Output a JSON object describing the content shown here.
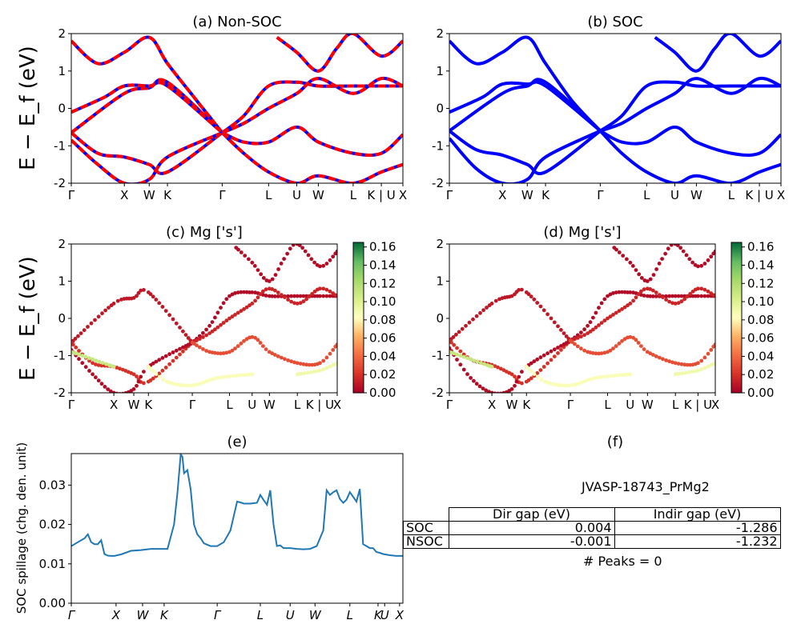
{
  "figure": {
    "ylabel_band": "E − E_f (eV)",
    "colorbar_ticks": [
      "0.00",
      "0.02",
      "0.04",
      "0.06",
      "0.08",
      "0.10",
      "0.12",
      "0.14",
      "0.16"
    ],
    "colorbar_range": [
      0,
      0.165
    ]
  },
  "panels": {
    "a": {
      "title": "(a) Non-SOC"
    },
    "b": {
      "title": "(b) SOC"
    },
    "c": {
      "title": "(c)  Mg ['s']"
    },
    "d": {
      "title": "(d) Mg ['s']"
    },
    "e": {
      "title": "(e)"
    },
    "f": {
      "title": "(f)"
    }
  },
  "kpath_labels": [
    "Γ",
    "X",
    "W",
    "K",
    "Γ",
    "L",
    "U",
    "W",
    "L",
    "K | U",
    "X"
  ],
  "kpath_positions": [
    0,
    0.16,
    0.235,
    0.29,
    0.455,
    0.595,
    0.68,
    0.745,
    0.85,
    0.935,
    1.0
  ],
  "spillage_labels": [
    "Γ",
    "X",
    "W",
    "K",
    "Γ",
    "L",
    "U",
    "W",
    "L",
    "K",
    "U",
    "X"
  ],
  "spillage_label_positions": [
    0,
    0.135,
    0.215,
    0.28,
    0.44,
    0.57,
    0.66,
    0.735,
    0.84,
    0.925,
    0.945,
    0.99
  ],
  "table": {
    "name": "JVASP-18743_PrMg2",
    "headers": [
      "Dir gap (eV)",
      "Indir gap (eV)"
    ],
    "rows": [
      {
        "label": "SOC",
        "dir": "0.004",
        "indir": "-1.286"
      },
      {
        "label": "NSOC",
        "dir": "-0.001",
        "indir": "-1.232"
      }
    ],
    "peaks": "# Peaks = 0"
  },
  "colors": {
    "nonsoc_up": "#ff0000",
    "nonsoc_dn": "#0000ff",
    "soc": "#0000ff",
    "spillage": "#1f77b4"
  },
  "chart_data": [
    {
      "type": "line",
      "panel": "a",
      "title": "(a) Non-SOC",
      "ylabel": "E − E_f (eV)",
      "ylim": [
        -2,
        2
      ],
      "yticks": [
        -2,
        -1,
        0,
        1,
        2
      ],
      "note_series": "band structure, spin up (red dashed) over spin down (blue)",
      "bands": [
        {
          "x": [
            0,
            0.16,
            0.235,
            0.29,
            0.455
          ],
          "y": [
            -0.65,
            0.4,
            0.55,
            0.7,
            -0.65
          ]
        },
        {
          "x": [
            0,
            0.08,
            0.16,
            0.235,
            0.29,
            0.455
          ],
          "y": [
            -0.65,
            -1.2,
            -1.3,
            -1.5,
            -1.7,
            -0.65
          ]
        },
        {
          "x": [
            0,
            0.08,
            0.16,
            0.235,
            0.29,
            0.455
          ],
          "y": [
            -0.85,
            -1.5,
            -2.0,
            -1.9,
            -1.3,
            -0.65
          ]
        },
        {
          "x": [
            0,
            0.08,
            0.16,
            0.235,
            0.29,
            0.37,
            0.455
          ],
          "y": [
            1.8,
            1.2,
            1.5,
            1.9,
            1.2,
            0.3,
            -0.65
          ]
        },
        {
          "x": [
            0,
            0.1,
            0.16,
            0.235,
            0.29,
            0.455
          ],
          "y": [
            -0.1,
            0.3,
            0.6,
            0.6,
            0.6,
            -0.65
          ]
        },
        {
          "x": [
            0.455,
            0.52,
            0.595,
            0.68,
            0.745,
            0.85,
            0.935,
            1.0
          ],
          "y": [
            -0.65,
            -0.2,
            0.6,
            0.7,
            0.6,
            0.6,
            0.6,
            0.6
          ]
        },
        {
          "x": [
            0.455,
            0.52,
            0.595,
            0.68,
            0.745,
            0.85,
            0.935,
            1.0
          ],
          "y": [
            -0.65,
            -1.2,
            -1.7,
            -2.0,
            -1.8,
            -2.0,
            -1.7,
            -1.5
          ]
        },
        {
          "x": [
            0.455,
            0.52,
            0.595,
            0.68,
            0.745,
            0.85,
            0.935,
            1.0
          ],
          "y": [
            -0.65,
            -0.4,
            0.0,
            0.4,
            0.8,
            0.4,
            0.8,
            0.6
          ]
        },
        {
          "x": [
            0.455,
            0.52,
            0.595,
            0.68,
            0.745,
            0.85,
            0.935,
            1.0
          ],
          "y": [
            -0.65,
            -0.9,
            -0.9,
            -0.5,
            -0.9,
            -1.2,
            -1.2,
            -0.7
          ]
        },
        {
          "x": [
            0.62,
            0.68,
            0.745,
            0.8,
            0.85,
            0.935,
            1.0
          ],
          "y": [
            1.9,
            1.5,
            1.0,
            1.6,
            2.0,
            1.4,
            1.8
          ]
        }
      ]
    },
    {
      "type": "line",
      "panel": "b",
      "title": "(b) SOC",
      "ylim": [
        -2,
        2
      ],
      "yticks": [
        -2,
        -1,
        0,
        1,
        2
      ],
      "bands": [
        {
          "x": [
            0,
            0.16,
            0.235,
            0.29,
            0.455
          ],
          "y": [
            -0.6,
            0.4,
            0.6,
            0.7,
            -0.6
          ]
        },
        {
          "x": [
            0,
            0.08,
            0.16,
            0.235,
            0.29,
            0.455
          ],
          "y": [
            -0.6,
            -1.1,
            -1.25,
            -1.5,
            -1.7,
            -0.6
          ]
        },
        {
          "x": [
            0,
            0.08,
            0.16,
            0.235,
            0.29,
            0.455
          ],
          "y": [
            -0.8,
            -1.6,
            -2.0,
            -1.9,
            -1.3,
            -0.6
          ]
        },
        {
          "x": [
            0,
            0.08,
            0.16,
            0.235,
            0.29,
            0.37,
            0.455
          ],
          "y": [
            1.8,
            1.2,
            1.5,
            1.9,
            1.2,
            0.2,
            -0.6
          ]
        },
        {
          "x": [
            0,
            0.1,
            0.16,
            0.235,
            0.29,
            0.455
          ],
          "y": [
            -0.1,
            0.3,
            0.65,
            0.65,
            0.6,
            -0.6
          ]
        },
        {
          "x": [
            0.455,
            0.52,
            0.595,
            0.68,
            0.745,
            0.85,
            0.935,
            1.0
          ],
          "y": [
            -0.6,
            -0.2,
            0.6,
            0.7,
            0.6,
            0.6,
            0.6,
            0.6
          ]
        },
        {
          "x": [
            0.455,
            0.52,
            0.595,
            0.68,
            0.745,
            0.85,
            0.935,
            1.0
          ],
          "y": [
            -0.6,
            -1.2,
            -1.7,
            -2.0,
            -1.8,
            -2.0,
            -1.7,
            -1.5
          ]
        },
        {
          "x": [
            0.455,
            0.52,
            0.595,
            0.68,
            0.745,
            0.85,
            0.935,
            1.0
          ],
          "y": [
            -0.6,
            -0.4,
            0.0,
            0.4,
            0.8,
            0.4,
            0.8,
            0.6
          ]
        },
        {
          "x": [
            0.455,
            0.52,
            0.595,
            0.68,
            0.745,
            0.85,
            0.935,
            1.0
          ],
          "y": [
            -0.6,
            -0.9,
            -0.9,
            -0.5,
            -0.9,
            -1.2,
            -1.2,
            -0.7
          ]
        },
        {
          "x": [
            0.62,
            0.68,
            0.745,
            0.8,
            0.85,
            0.935,
            1.0
          ],
          "y": [
            1.9,
            1.5,
            1.0,
            1.6,
            2.0,
            1.4,
            1.8
          ]
        }
      ]
    },
    {
      "type": "scatter",
      "panel": "c",
      "title": "(c)  Mg ['s']",
      "ylabel": "E − E_f (eV)",
      "ylim": [
        -2,
        2
      ],
      "colorbar_range": [
        0,
        0.165
      ],
      "bands": [
        {
          "x": [
            0,
            0.16,
            0.235,
            0.29,
            0.455
          ],
          "y": [
            -0.65,
            0.4,
            0.55,
            0.7,
            -0.65
          ],
          "w": 0.01
        },
        {
          "x": [
            0,
            0.08,
            0.16,
            0.235,
            0.29,
            0.455
          ],
          "y": [
            -0.65,
            -1.2,
            -1.3,
            -1.5,
            -1.7,
            -0.65
          ],
          "w": 0.02
        },
        {
          "x": [
            0,
            0.08,
            0.16,
            0.235,
            0.29,
            0.455
          ],
          "y": [
            -0.85,
            -1.5,
            -2.0,
            -1.9,
            -1.3,
            -0.65
          ],
          "w": 0.005
        },
        {
          "x": [
            0,
            0.08,
            0.16
          ],
          "y": [
            -0.9,
            -1.1,
            -1.3
          ],
          "w": 0.11
        },
        {
          "x": [
            0.29,
            0.36,
            0.455,
            0.55,
            0.68
          ],
          "y": [
            -1.3,
            -1.7,
            -1.8,
            -1.6,
            -1.5
          ],
          "w": 0.085
        },
        {
          "x": [
            0.85,
            0.935,
            1.0
          ],
          "y": [
            -1.5,
            -1.4,
            -1.2
          ],
          "w": 0.09
        },
        {
          "x": [
            0.455,
            0.52,
            0.595,
            0.68,
            0.745,
            0.85,
            0.935,
            1.0
          ],
          "y": [
            -0.65,
            -0.2,
            0.6,
            0.7,
            0.6,
            0.6,
            0.6,
            0.6
          ],
          "w": 0.005
        },
        {
          "x": [
            0.455,
            0.52,
            0.595,
            0.68,
            0.745,
            0.85,
            0.935,
            1.0
          ],
          "y": [
            -0.65,
            -0.4,
            0.0,
            0.4,
            0.8,
            0.4,
            0.8,
            0.6
          ],
          "w": 0.015
        },
        {
          "x": [
            0.455,
            0.52,
            0.595,
            0.68,
            0.745,
            0.85,
            0.935,
            1.0
          ],
          "y": [
            -0.65,
            -0.9,
            -0.9,
            -0.5,
            -0.9,
            -1.2,
            -1.2,
            -0.7
          ],
          "w": 0.03
        },
        {
          "x": [
            0.62,
            0.68,
            0.745,
            0.8,
            0.85,
            0.935,
            1.0
          ],
          "y": [
            1.9,
            1.5,
            1.0,
            1.6,
            2.0,
            1.4,
            1.8
          ],
          "w": 0.005
        }
      ]
    },
    {
      "type": "scatter",
      "panel": "d",
      "title": "(d) Mg ['s']",
      "ylim": [
        -2,
        2
      ],
      "colorbar_range": [
        0,
        0.165
      ],
      "bands": [
        {
          "x": [
            0,
            0.16,
            0.235,
            0.29,
            0.455
          ],
          "y": [
            -0.6,
            0.4,
            0.6,
            0.7,
            -0.6
          ],
          "w": 0.01
        },
        {
          "x": [
            0,
            0.08,
            0.16,
            0.235,
            0.29,
            0.455
          ],
          "y": [
            -0.6,
            -1.1,
            -1.25,
            -1.5,
            -1.7,
            -0.6
          ],
          "w": 0.02
        },
        {
          "x": [
            0,
            0.08,
            0.16,
            0.235,
            0.29,
            0.455
          ],
          "y": [
            -0.8,
            -1.6,
            -2.0,
            -1.9,
            -1.3,
            -0.6
          ],
          "w": 0.005
        },
        {
          "x": [
            0,
            0.08,
            0.16
          ],
          "y": [
            -0.9,
            -1.1,
            -1.3
          ],
          "w": 0.11
        },
        {
          "x": [
            0.29,
            0.36,
            0.455,
            0.55,
            0.68
          ],
          "y": [
            -1.3,
            -1.7,
            -1.8,
            -1.6,
            -1.5
          ],
          "w": 0.085
        },
        {
          "x": [
            0.85,
            0.935,
            1.0
          ],
          "y": [
            -1.5,
            -1.4,
            -1.2
          ],
          "w": 0.09
        },
        {
          "x": [
            0.455,
            0.52,
            0.595,
            0.68,
            0.745,
            0.85,
            0.935,
            1.0
          ],
          "y": [
            -0.6,
            -0.2,
            0.6,
            0.7,
            0.6,
            0.6,
            0.6,
            0.6
          ],
          "w": 0.005
        },
        {
          "x": [
            0.455,
            0.52,
            0.595,
            0.68,
            0.745,
            0.85,
            0.935,
            1.0
          ],
          "y": [
            -0.6,
            -0.4,
            0.0,
            0.4,
            0.8,
            0.4,
            0.8,
            0.6
          ],
          "w": 0.015
        },
        {
          "x": [
            0.455,
            0.52,
            0.595,
            0.68,
            0.745,
            0.85,
            0.935,
            1.0
          ],
          "y": [
            -0.6,
            -0.9,
            -0.9,
            -0.5,
            -0.9,
            -1.2,
            -1.2,
            -0.7
          ],
          "w": 0.03
        },
        {
          "x": [
            0.62,
            0.68,
            0.745,
            0.8,
            0.85,
            0.935,
            1.0
          ],
          "y": [
            1.9,
            1.5,
            1.0,
            1.6,
            2.0,
            1.4,
            1.8
          ],
          "w": 0.005
        }
      ]
    },
    {
      "type": "line",
      "panel": "e",
      "title": "(e)",
      "ylabel": "SOC spillage (chg. den. unit)",
      "ylim": [
        0,
        0.038
      ],
      "yticks": [
        "0.00",
        "0.01",
        "0.02",
        "0.03"
      ],
      "x": [
        0,
        0.02,
        0.04,
        0.05,
        0.06,
        0.07,
        0.08,
        0.09,
        0.1,
        0.11,
        0.12,
        0.13,
        0.15,
        0.18,
        0.21,
        0.24,
        0.27,
        0.29,
        0.31,
        0.32,
        0.33,
        0.335,
        0.34,
        0.35,
        0.36,
        0.37,
        0.38,
        0.39,
        0.4,
        0.42,
        0.44,
        0.46,
        0.48,
        0.5,
        0.51,
        0.52,
        0.54,
        0.56,
        0.57,
        0.58,
        0.59,
        0.6,
        0.61,
        0.62,
        0.63,
        0.64,
        0.65,
        0.66,
        0.68,
        0.7,
        0.72,
        0.74,
        0.76,
        0.77,
        0.78,
        0.79,
        0.8,
        0.81,
        0.82,
        0.83,
        0.84,
        0.85,
        0.86,
        0.87,
        0.88,
        0.89,
        0.9,
        0.91,
        0.92,
        0.93,
        0.94,
        0.96,
        0.98,
        1.0
      ],
      "y": [
        0.0145,
        0.0155,
        0.0165,
        0.0175,
        0.0155,
        0.015,
        0.015,
        0.016,
        0.0125,
        0.0121,
        0.012,
        0.012,
        0.0124,
        0.0133,
        0.0135,
        0.0138,
        0.0138,
        0.0138,
        0.02,
        0.028,
        0.0378,
        0.0372,
        0.033,
        0.0338,
        0.029,
        0.02,
        0.0175,
        0.0165,
        0.0152,
        0.0145,
        0.0145,
        0.0155,
        0.0185,
        0.0258,
        0.0256,
        0.0253,
        0.0253,
        0.0255,
        0.0275,
        0.0262,
        0.025,
        0.0287,
        0.02,
        0.0145,
        0.0147,
        0.014,
        0.014,
        0.014,
        0.0138,
        0.0137,
        0.0138,
        0.0145,
        0.0185,
        0.0287,
        0.0275,
        0.0282,
        0.0287,
        0.0265,
        0.0255,
        0.0263,
        0.0282,
        0.027,
        0.0258,
        0.029,
        0.015,
        0.0145,
        0.014,
        0.014,
        0.013,
        0.0128,
        0.0125,
        0.0122,
        0.012,
        0.012
      ]
    },
    {
      "type": "table",
      "panel": "f",
      "title": "(f)",
      "caption": "JVASP-18743_PrMg2",
      "columns": [
        "",
        "Dir gap (eV)",
        "Indir gap (eV)"
      ],
      "rows": [
        [
          "SOC",
          0.004,
          -1.286
        ],
        [
          "NSOC",
          -0.001,
          -1.232
        ]
      ],
      "footer": "# Peaks = 0"
    }
  ]
}
